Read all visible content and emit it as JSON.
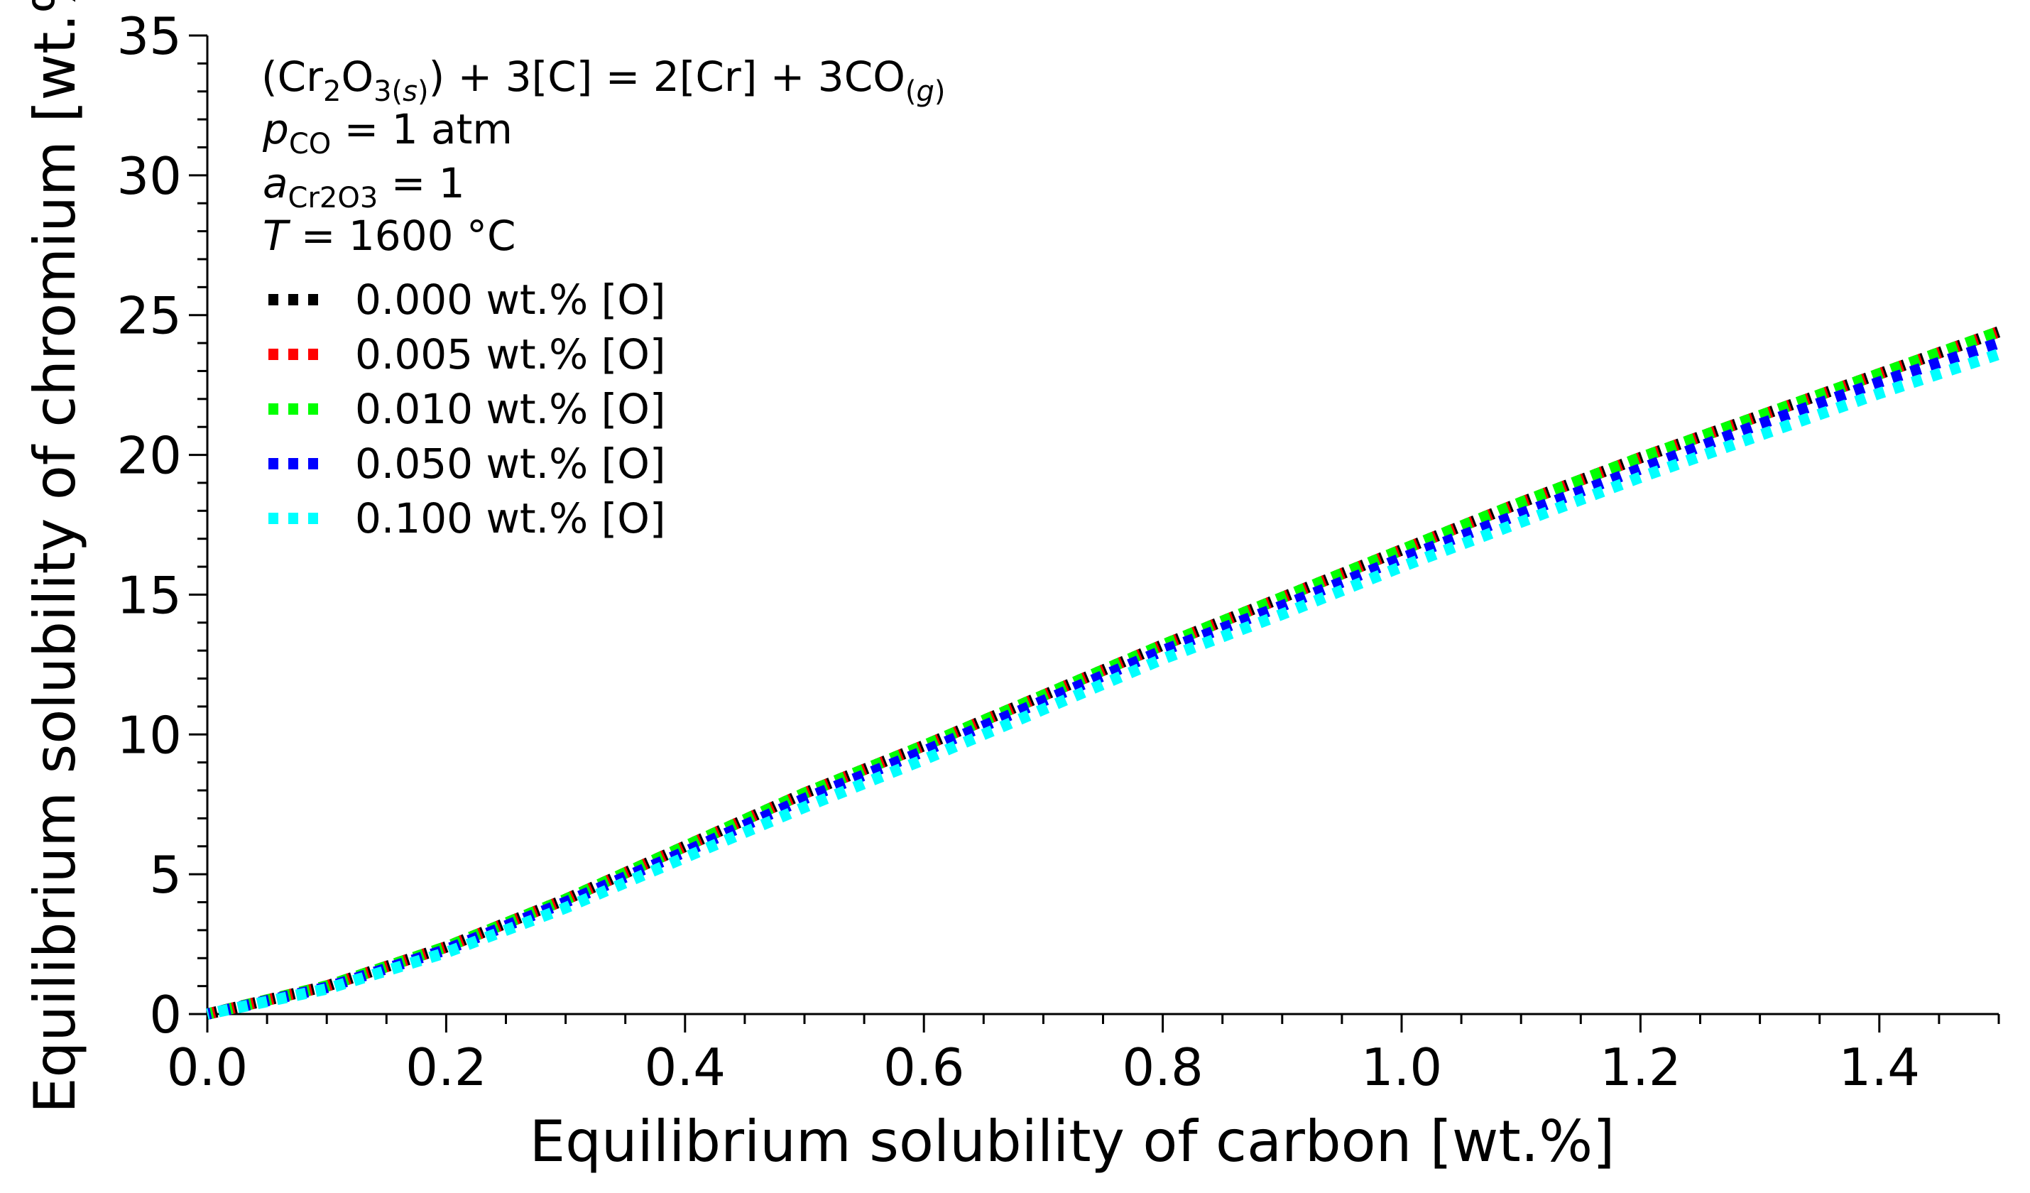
{
  "chart_data": {
    "type": "line",
    "xlabel": "Equilibrium solubility of carbon [wt.%]",
    "ylabel": "Equilibrium solubility of chromium [wt.%]",
    "xlim": [
      0.0,
      1.5
    ],
    "ylim": [
      0,
      35
    ],
    "xticks": [
      "0.0",
      "0.2",
      "0.4",
      "0.6",
      "0.8",
      "1.0",
      "1.2",
      "1.4"
    ],
    "xtick_values": [
      0.0,
      0.2,
      0.4,
      0.6,
      0.8,
      1.0,
      1.2,
      1.4
    ],
    "yticks": [
      "0",
      "5",
      "10",
      "15",
      "20",
      "25",
      "30",
      "35"
    ],
    "ytick_values": [
      0,
      5,
      10,
      15,
      20,
      25,
      30,
      35
    ],
    "annotations": {
      "reaction": "(Cr2O3(s)) + 3[C] = 2[Cr] + 3CO(g)",
      "reaction_parts": {
        "open": "(Cr",
        "sub1": "2",
        "mid1": "O",
        "sub2": "3(",
        "sub2_italic": "s",
        "sub2_close": ")",
        "mid2": ") + 3[C] = 2[Cr] + 3CO",
        "sub3_open": "(",
        "sub3_italic": "g",
        "sub3_close": ")"
      },
      "pco_symbol": "p",
      "pco_sub": "CO",
      "pco_rest": " = 1 atm",
      "acr_symbol": "a",
      "acr_sub": "Cr2O3",
      "acr_rest": " = 1",
      "temp_symbol": "T",
      "temp_rest": " = 1600 °C"
    },
    "legend_position": "top-left",
    "series": [
      {
        "name": "0.000 wt.% [O]",
        "color": "#000000",
        "x": [
          0.0,
          0.1,
          0.2,
          0.3,
          0.4,
          0.5,
          0.6,
          0.7,
          0.8,
          0.9,
          1.0,
          1.1,
          1.2,
          1.3,
          1.4,
          1.5
        ],
        "y": [
          0.0,
          1.0,
          2.4,
          4.1,
          6.0,
          7.9,
          9.6,
          11.4,
          13.2,
          14.9,
          16.6,
          18.3,
          19.9,
          21.4,
          22.9,
          24.4
        ]
      },
      {
        "name": "0.005 wt.% [O]",
        "color": "#ff0000",
        "x": [
          0.0,
          0.1,
          0.2,
          0.3,
          0.4,
          0.5,
          0.6,
          0.7,
          0.8,
          0.9,
          1.0,
          1.1,
          1.2,
          1.3,
          1.4,
          1.5
        ],
        "y": [
          0.0,
          1.0,
          2.4,
          4.1,
          6.0,
          7.9,
          9.6,
          11.4,
          13.2,
          14.9,
          16.6,
          18.3,
          19.9,
          21.4,
          22.9,
          24.4
        ]
      },
      {
        "name": "0.010 wt.% [O]",
        "color": "#00ff00",
        "x": [
          0.0,
          0.1,
          0.2,
          0.3,
          0.4,
          0.5,
          0.6,
          0.7,
          0.8,
          0.9,
          1.0,
          1.1,
          1.2,
          1.3,
          1.4,
          1.5
        ],
        "y": [
          0.0,
          1.0,
          2.4,
          4.1,
          6.0,
          7.9,
          9.6,
          11.4,
          13.2,
          14.9,
          16.6,
          18.3,
          19.9,
          21.4,
          22.9,
          24.4
        ]
      },
      {
        "name": "0.050 wt.% [O]",
        "color": "#0000ff",
        "x": [
          0.0,
          0.1,
          0.2,
          0.3,
          0.4,
          0.5,
          0.6,
          0.7,
          0.8,
          0.9,
          1.0,
          1.1,
          1.2,
          1.3,
          1.4,
          1.5
        ],
        "y": [
          0.0,
          0.95,
          2.3,
          4.0,
          5.8,
          7.7,
          9.4,
          11.2,
          13.0,
          14.6,
          16.3,
          17.9,
          19.5,
          21.1,
          22.6,
          24.0
        ]
      },
      {
        "name": "0.100 wt.% [O]",
        "color": "#00ffff",
        "x": [
          0.0,
          0.1,
          0.2,
          0.3,
          0.4,
          0.5,
          0.6,
          0.7,
          0.8,
          0.9,
          1.0,
          1.1,
          1.2,
          1.3,
          1.4,
          1.5
        ],
        "y": [
          0.0,
          0.9,
          2.2,
          3.8,
          5.6,
          7.4,
          9.1,
          10.9,
          12.7,
          14.3,
          16.0,
          17.6,
          19.2,
          20.7,
          22.2,
          23.6
        ]
      }
    ]
  }
}
